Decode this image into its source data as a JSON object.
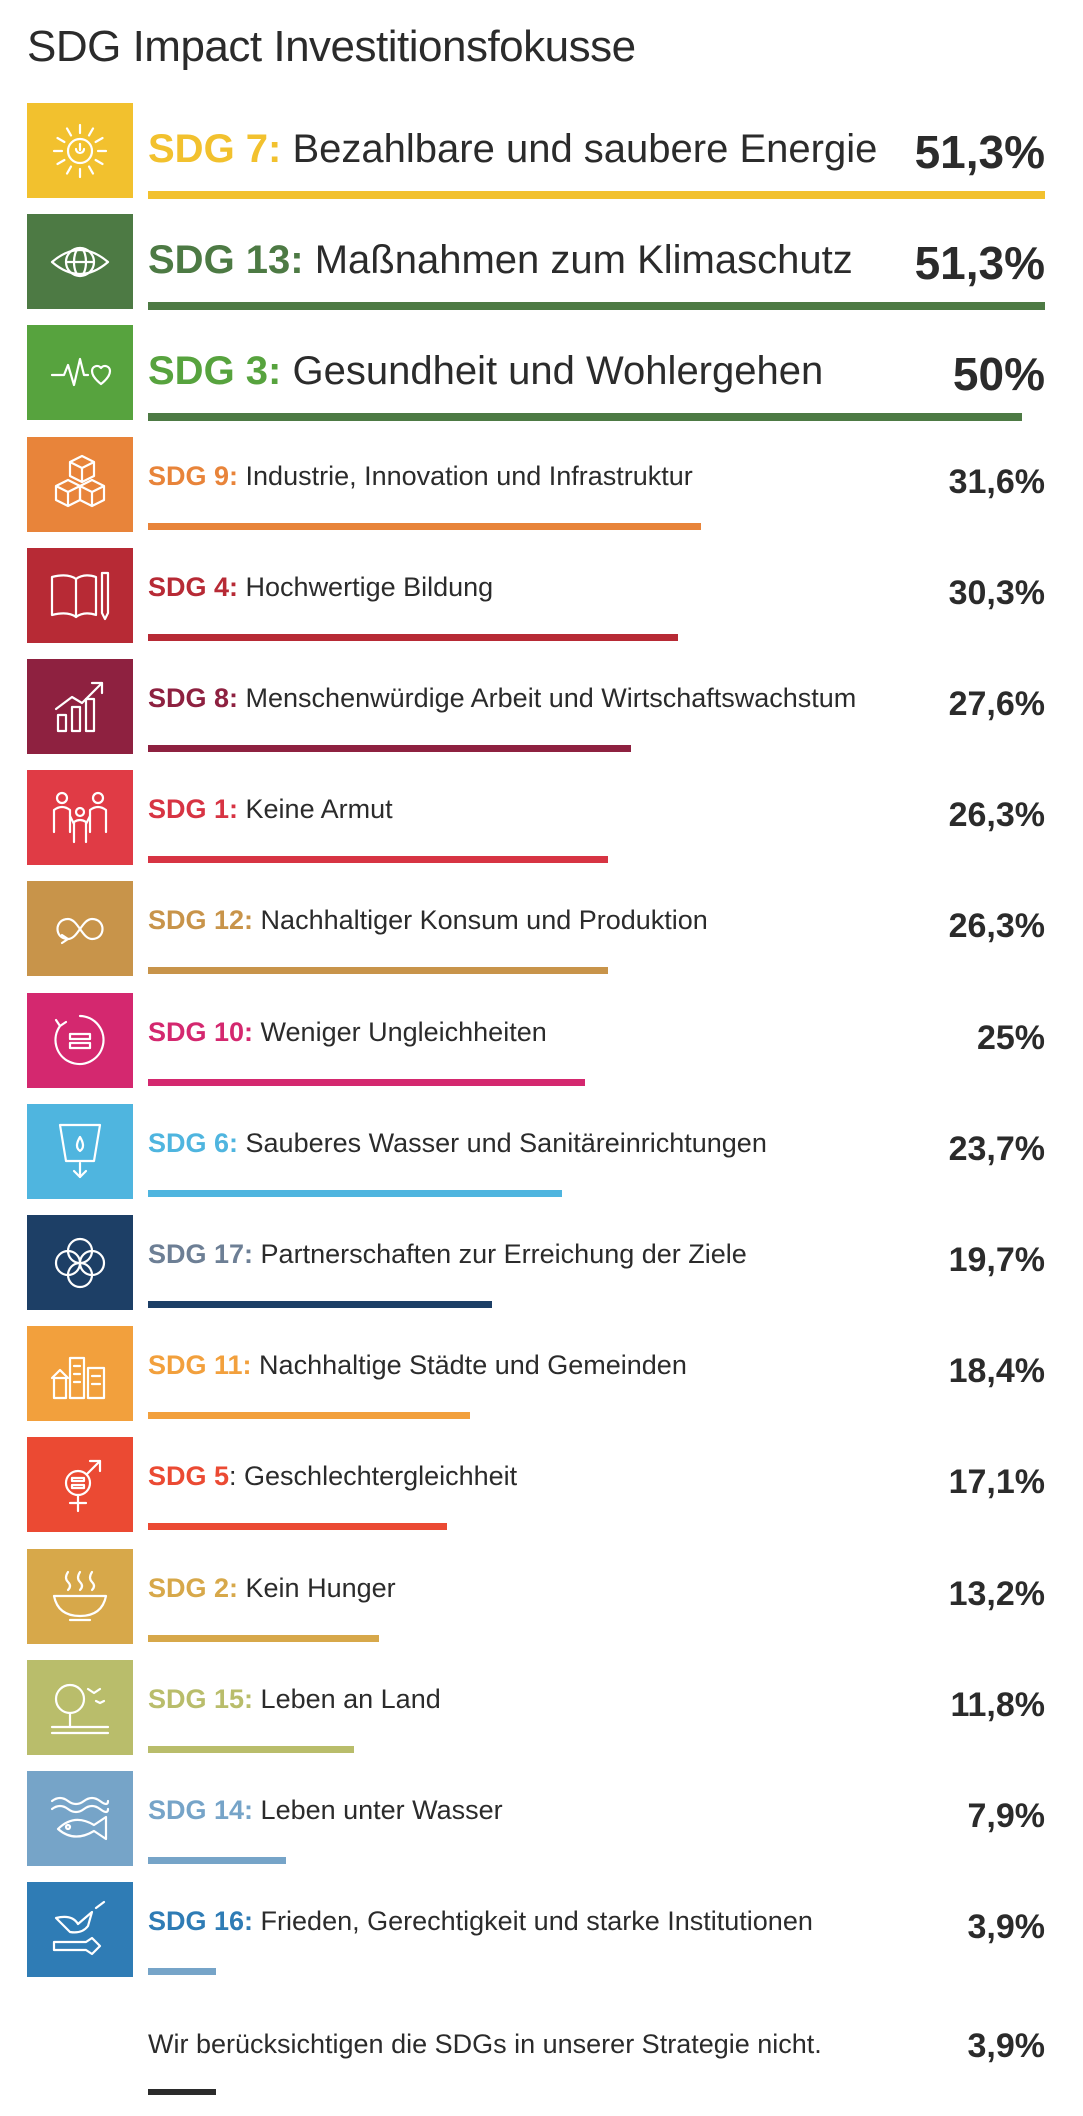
{
  "title": "SDG Impact Investitionsfokusse",
  "chart_data": {
    "type": "bar",
    "title": "SDG Impact Investitionsfokusse",
    "unit": "%",
    "items": [
      {
        "code": "SDG 7:",
        "label": " Bezahlbare und saubere Energie",
        "value_text": "51,3%",
        "value": 51.3,
        "color": "#F2C12E",
        "text_color": "#F2C12E",
        "bar_color": "#F2C12E",
        "icon": "sun-icon",
        "size": "big"
      },
      {
        "code": "SDG 13:",
        "label": " Maßnahmen zum Klimaschutz",
        "value_text": "51,3%",
        "value": 51.3,
        "color": "#4D7A44",
        "text_color": "#4D7A44",
        "bar_color": "#4D7A44",
        "icon": "globe-eye-icon",
        "size": "big"
      },
      {
        "code": "SDG 3:",
        "label": " Gesundheit und Wohlergehen",
        "value_text": "50%",
        "value": 50,
        "color": "#57A33E",
        "text_color": "#57A33E",
        "bar_color": "#4D7A44",
        "icon": "heartbeat-icon",
        "size": "big"
      },
      {
        "code": "SDG 9:",
        "label": " Industrie, Innovation und Infrastruktur",
        "value_text": "31,6%",
        "value": 31.6,
        "color": "#E8843A",
        "text_color": "#E8843A",
        "bar_color": "#E8843A",
        "icon": "cubes-icon",
        "size": "small"
      },
      {
        "code": "SDG 4:",
        "label": " Hochwertige Bildung",
        "value_text": "30,3%",
        "value": 30.3,
        "color": "#B72A35",
        "text_color": "#B72A35",
        "bar_color": "#B72A35",
        "icon": "book-pencil-icon",
        "size": "small"
      },
      {
        "code": "SDG 8:",
        "label": " Menschenwürdige Arbeit und Wirtschaftswachstum",
        "value_text": "27,6%",
        "value": 27.6,
        "color": "#8E2140",
        "text_color": "#8E2140",
        "bar_color": "#8E2140",
        "icon": "growth-chart-icon",
        "size": "small"
      },
      {
        "code": "SDG 1:",
        "label": " Keine Armut",
        "value_text": "26,3%",
        "value": 26.3,
        "color": "#E03B45",
        "text_color": "#D73443",
        "bar_color": "#D73443",
        "icon": "family-icon",
        "size": "small"
      },
      {
        "code": "SDG 12:",
        "label": " Nachhaltiger Konsum und Produktion",
        "value_text": "26,3%",
        "value": 26.3,
        "color": "#C8944A",
        "text_color": "#C8944A",
        "bar_color": "#C8944A",
        "icon": "infinity-icon",
        "size": "small"
      },
      {
        "code": "SDG 10:",
        "label": " Weniger Ungleichheiten",
        "value_text": "25%",
        "value": 25,
        "color": "#D4286F",
        "text_color": "#D4286F",
        "bar_color": "#D4286F",
        "icon": "equality-icon",
        "size": "small"
      },
      {
        "code": "SDG 6:",
        "label": " Sauberes Wasser und Sanitäreinrichtungen",
        "value_text": "23,7%",
        "value": 23.7,
        "color": "#4FB5DF",
        "text_color": "#4FB5DF",
        "bar_color": "#4FB5DF",
        "icon": "water-glass-icon",
        "size": "small"
      },
      {
        "code": "SDG 17:",
        "label": " Partnerschaften zur Erreichung der Ziele",
        "value_text": "19,7%",
        "value": 19.7,
        "color": "#1D3F66",
        "text_color": "#6D7F95",
        "bar_color": "#1D3F66",
        "icon": "flower-rings-icon",
        "size": "small"
      },
      {
        "code": "SDG 11:",
        "label": " Nachhaltige Städte und Gemeinden",
        "value_text": "18,4%",
        "value": 18.4,
        "color": "#F2A03D",
        "text_color": "#F2A03D",
        "bar_color": "#F2A03D",
        "icon": "city-icon",
        "size": "small"
      },
      {
        "code": "SDG 5",
        "label": ": Geschlechtergleichheit",
        "value_text": "17,1%",
        "value": 17.1,
        "color": "#EB4A33",
        "text_color": "#EB4A33",
        "bar_color": "#EB4A33",
        "icon": "gender-icon",
        "size": "small"
      },
      {
        "code": "SDG 2:",
        "label": " Kein Hunger",
        "value_text": "13,2%",
        "value": 13.2,
        "color": "#D7A84A",
        "text_color": "#D7A84A",
        "bar_color": "#D7A84A",
        "icon": "bowl-icon",
        "size": "small"
      },
      {
        "code": "SDG 15:",
        "label": " Leben an Land",
        "value_text": "11,8%",
        "value": 11.8,
        "color": "#B9BD6B",
        "text_color": "#B9BD6B",
        "bar_color": "#B9BD6B",
        "icon": "tree-bird-icon",
        "size": "small"
      },
      {
        "code": "SDG 14:",
        "label": " Leben unter Wasser",
        "value_text": "7,9%",
        "value": 7.9,
        "color": "#76A4C8",
        "text_color": "#76A4C8",
        "bar_color": "#76A4C8",
        "icon": "fish-icon",
        "size": "small"
      },
      {
        "code": "SDG 16:",
        "label": " Frieden, Gerechtigkeit und starke Institutionen",
        "value_text": "3,9%",
        "value": 3.9,
        "color": "#2F7CB5",
        "text_color": "#2F7CB5",
        "bar_color": "#76A4C8",
        "icon": "dove-gavel-icon",
        "size": "small"
      }
    ],
    "note": {
      "label": "Wir berücksichtigen die SDGs in unserer Strategie nicht.",
      "value_text": "3,9%",
      "value": 3.9,
      "bar_color": "#2b2b2b"
    },
    "xlim": [
      0,
      51.3
    ]
  }
}
